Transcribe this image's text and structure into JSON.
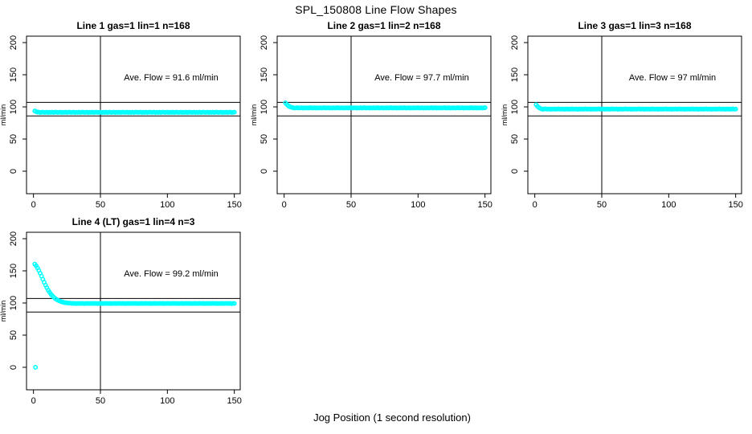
{
  "page_title": "SPL_150808  Line Flow Shapes",
  "xlabel": "Jog Position (1 second resolution)",
  "colors": {
    "points": "#00FFFF",
    "axis": "#000000",
    "background": "#FFFFFF"
  },
  "chart_data": [
    {
      "type": "scatter",
      "title": "Line 1 gas=1 lin=1 n=168",
      "annotation": "Ave. Flow =  91.6  ml/min",
      "ave_flow_ml_min": 91.6,
      "ylabel": "ml/min",
      "x_ticks": [
        0,
        50,
        100,
        150
      ],
      "y_ticks": [
        0,
        50,
        100,
        150,
        200
      ],
      "xlim": [
        -5.2,
        154.4
      ],
      "ylim": [
        -35,
        210
      ],
      "ref_hlines": [
        107,
        86
      ],
      "ref_vline": 50,
      "x_start": 1,
      "x_step": 1,
      "y": [
        93.6,
        92.5,
        91.9,
        91.7,
        91.3,
        91.6,
        91.8,
        91.4,
        91.5,
        91.7,
        91.2,
        91.6,
        91.4,
        91.7,
        91.3,
        91.6,
        91.8,
        91.4,
        91.5,
        91.7,
        91.2,
        91.6,
        91.4,
        91.7,
        91.3,
        91.6,
        91.8,
        91.4,
        91.5,
        91.7,
        91.2,
        91.6,
        91.4,
        91.7,
        91.3,
        91.6,
        91.8,
        91.4,
        91.5,
        91.7,
        91.2,
        91.6,
        91.4,
        91.7,
        91.3,
        91.6,
        91.8,
        91.4,
        91.5,
        91.7,
        91.2,
        91.6,
        91.4,
        91.7,
        91.3,
        91.6,
        91.8,
        91.4,
        91.5,
        91.7,
        91.2,
        91.6,
        91.4,
        91.7,
        91.3,
        91.6,
        91.8,
        91.4,
        91.5,
        91.7,
        91.2,
        91.6,
        91.4,
        91.7,
        91.3,
        91.6,
        91.8,
        91.4,
        91.5,
        91.7,
        91.2,
        91.6,
        91.4,
        91.7,
        91.3,
        91.6,
        91.8,
        91.4,
        91.5,
        91.7,
        91.2,
        91.6,
        91.4,
        91.7,
        91.3,
        91.6,
        91.8,
        91.4,
        91.5,
        91.7,
        91.2,
        91.6,
        91.4,
        91.7,
        91.3,
        91.6,
        91.8,
        91.4,
        91.5,
        91.7,
        91.2,
        91.6,
        91.4,
        91.7,
        91.3,
        91.6,
        91.8,
        91.4,
        91.5,
        91.7,
        91.2,
        91.6,
        91.4,
        91.7,
        91.3,
        91.6,
        91.8,
        91.4,
        91.5,
        91.7,
        91.2,
        91.6,
        91.4,
        91.7,
        91.3,
        91.6,
        91.8,
        91.4,
        91.5,
        91.7,
        91.2,
        91.6,
        91.4,
        91.7,
        91.3,
        91.6,
        91.8,
        91.4,
        91.5,
        91.7
      ],
      "extra_points": []
    },
    {
      "type": "scatter",
      "title": "Line 2 gas=1 lin=2 n=168",
      "annotation": "Ave. Flow =  97.7  ml/min",
      "ave_flow_ml_min": 97.7,
      "ylabel": "ml/min",
      "x_ticks": [
        0,
        50,
        100,
        150
      ],
      "y_ticks": [
        0,
        50,
        100,
        150,
        200
      ],
      "xlim": [
        -5.2,
        154.4
      ],
      "ylim": [
        -35,
        210
      ],
      "ref_hlines": [
        107,
        86
      ],
      "ref_vline": 50,
      "x_start": 1,
      "x_step": 1,
      "y": [
        106.3,
        103.8,
        101.9,
        100.6,
        99.6,
        99.0,
        98.6,
        98.2,
        98.5,
        98.7,
        98.3,
        98.4,
        98.6,
        98.1,
        98.5,
        98.3,
        98.6,
        98.2,
        98.5,
        98.7,
        98.3,
        98.4,
        98.6,
        98.1,
        98.5,
        98.3,
        98.6,
        98.2,
        98.5,
        98.7,
        98.3,
        98.4,
        98.6,
        98.1,
        98.5,
        98.3,
        98.6,
        98.2,
        98.5,
        98.7,
        98.3,
        98.4,
        98.6,
        98.1,
        98.5,
        98.3,
        98.6,
        98.2,
        98.5,
        98.7,
        98.3,
        98.4,
        98.6,
        98.1,
        98.5,
        98.3,
        98.6,
        98.2,
        98.5,
        98.7,
        98.3,
        98.4,
        98.6,
        98.1,
        98.5,
        98.3,
        98.6,
        98.2,
        98.5,
        98.7,
        98.3,
        98.4,
        98.6,
        98.1,
        98.5,
        98.3,
        98.6,
        98.2,
        98.5,
        98.7,
        98.3,
        98.4,
        98.6,
        98.1,
        98.5,
        98.3,
        98.6,
        98.2,
        98.5,
        98.7,
        98.3,
        98.4,
        98.6,
        98.1,
        98.5,
        98.3,
        98.6,
        98.2,
        98.5,
        98.7,
        98.3,
        98.4,
        98.6,
        98.1,
        98.5,
        98.3,
        98.6,
        98.2,
        98.5,
        98.7,
        98.3,
        98.4,
        98.6,
        98.1,
        98.5,
        98.3,
        98.6,
        98.2,
        98.5,
        98.7,
        98.3,
        98.4,
        98.6,
        98.1,
        98.5,
        98.3,
        98.6,
        98.2,
        98.5,
        98.7,
        98.3,
        98.4,
        98.6,
        98.1,
        98.5,
        98.3,
        98.6,
        98.2,
        98.5,
        98.7,
        98.3,
        98.4,
        98.6,
        98.1,
        98.5,
        98.3,
        98.6,
        98.2,
        98.5,
        98.7
      ],
      "extra_points": []
    },
    {
      "type": "scatter",
      "title": "Line 3 gas=1 lin=3 n=168",
      "annotation": "Ave. Flow =  97  ml/min",
      "ave_flow_ml_min": 97,
      "ylabel": "ml/min",
      "x_ticks": [
        0,
        50,
        100,
        150
      ],
      "y_ticks": [
        0,
        50,
        100,
        150,
        200
      ],
      "xlim": [
        -5.2,
        154.4
      ],
      "ylim": [
        -35,
        210
      ],
      "ref_hlines": [
        107,
        86
      ],
      "ref_vline": 50,
      "x_start": 1,
      "x_step": 1,
      "y": [
        103.4,
        100.9,
        99.0,
        97.7,
        96.8,
        96.4,
        96.7,
        96.9,
        96.5,
        96.6,
        96.8,
        96.3,
        96.7,
        96.5,
        96.8,
        96.4,
        96.7,
        96.9,
        96.5,
        96.6,
        96.8,
        96.3,
        96.7,
        96.5,
        96.8,
        96.4,
        96.7,
        96.9,
        96.5,
        96.6,
        96.8,
        96.3,
        96.7,
        96.5,
        96.8,
        96.4,
        96.7,
        96.9,
        96.5,
        96.6,
        96.8,
        96.3,
        96.7,
        96.5,
        96.8,
        96.4,
        96.7,
        96.9,
        96.5,
        96.6,
        96.8,
        96.3,
        96.7,
        96.5,
        96.8,
        96.4,
        96.7,
        96.9,
        96.5,
        96.6,
        96.8,
        96.3,
        96.7,
        96.5,
        96.8,
        96.4,
        96.7,
        96.9,
        96.5,
        96.6,
        96.8,
        96.3,
        96.7,
        96.5,
        96.8,
        96.4,
        96.7,
        96.9,
        96.5,
        96.6,
        96.8,
        96.3,
        96.7,
        96.5,
        96.8,
        96.4,
        96.7,
        96.9,
        96.5,
        96.6,
        96.8,
        96.3,
        96.7,
        96.5,
        96.8,
        96.4,
        96.7,
        96.9,
        96.5,
        96.6,
        96.8,
        96.3,
        96.7,
        96.5,
        96.8,
        96.4,
        96.7,
        96.9,
        96.5,
        96.6,
        96.8,
        96.3,
        96.7,
        96.5,
        96.8,
        96.4,
        96.7,
        96.9,
        96.5,
        96.6,
        96.8,
        96.3,
        96.7,
        96.5,
        96.8,
        96.4,
        96.7,
        96.9,
        96.5,
        96.6,
        96.8,
        96.3,
        96.7,
        96.5,
        96.8,
        96.4,
        96.7,
        96.9,
        96.5,
        96.6,
        96.8,
        96.3,
        96.7,
        96.5,
        96.8,
        96.4,
        96.7,
        96.9,
        96.5,
        96.6
      ],
      "extra_points": []
    },
    {
      "type": "scatter",
      "title": "Line 4 (LT) gas=1 lin=4 n=3",
      "annotation": "Ave. Flow =  99.2  ml/min",
      "ave_flow_ml_min": 99.2,
      "ylabel": "ml/min",
      "x_ticks": [
        0,
        50,
        100,
        150
      ],
      "y_ticks": [
        0,
        50,
        100,
        150,
        200
      ],
      "xlim": [
        -5.2,
        154.4
      ],
      "ylim": [
        -35,
        210
      ],
      "ref_hlines": [
        107,
        86
      ],
      "ref_vline": 50,
      "x_start": 1,
      "x_step": 1,
      "y": [
        160.5,
        157.9,
        154.6,
        150.8,
        146.4,
        141.8,
        137.0,
        132.3,
        127.8,
        123.7,
        120.0,
        116.7,
        113.8,
        111.3,
        109.2,
        107.4,
        105.9,
        104.6,
        103.5,
        102.6,
        101.9,
        101.3,
        100.8,
        100.4,
        100.1,
        99.9,
        99.7,
        99.6,
        99.5,
        99.4,
        99.4,
        99.1,
        99.3,
        99.5,
        99.2,
        99.3,
        99.4,
        99.0,
        99.3,
        99.2,
        99.4,
        99.1,
        99.3,
        99.5,
        99.2,
        99.3,
        99.4,
        99.0,
        99.3,
        99.2,
        99.4,
        99.1,
        99.3,
        99.5,
        99.2,
        99.3,
        99.4,
        99.0,
        99.3,
        99.2,
        99.4,
        99.1,
        99.3,
        99.5,
        99.2,
        99.3,
        99.4,
        99.0,
        99.3,
        99.2,
        99.4,
        99.1,
        99.3,
        99.5,
        99.2,
        99.3,
        99.4,
        99.0,
        99.3,
        99.2,
        99.4,
        99.1,
        99.3,
        99.5,
        99.2,
        99.3,
        99.4,
        99.0,
        99.3,
        99.2,
        99.4,
        99.1,
        99.3,
        99.5,
        99.2,
        99.3,
        99.4,
        99.0,
        99.3,
        99.2,
        99.4,
        99.1,
        99.3,
        99.5,
        99.2,
        99.3,
        99.4,
        99.0,
        99.3,
        99.2,
        99.4,
        99.1,
        99.3,
        99.5,
        99.2,
        99.3,
        99.4,
        99.0,
        99.3,
        99.2,
        99.4,
        99.1,
        99.3,
        99.5,
        99.2,
        99.3,
        99.4,
        99.0,
        99.3,
        99.2,
        99.4,
        99.1,
        99.3,
        99.5,
        99.2,
        99.3,
        99.4,
        99.0,
        99.3,
        99.2,
        99.4,
        99.1,
        99.3,
        99.5,
        99.2,
        99.3,
        99.4,
        99.0,
        99.3,
        99.2
      ],
      "extra_points": [
        {
          "x": 1.5,
          "y": 0
        }
      ]
    }
  ]
}
